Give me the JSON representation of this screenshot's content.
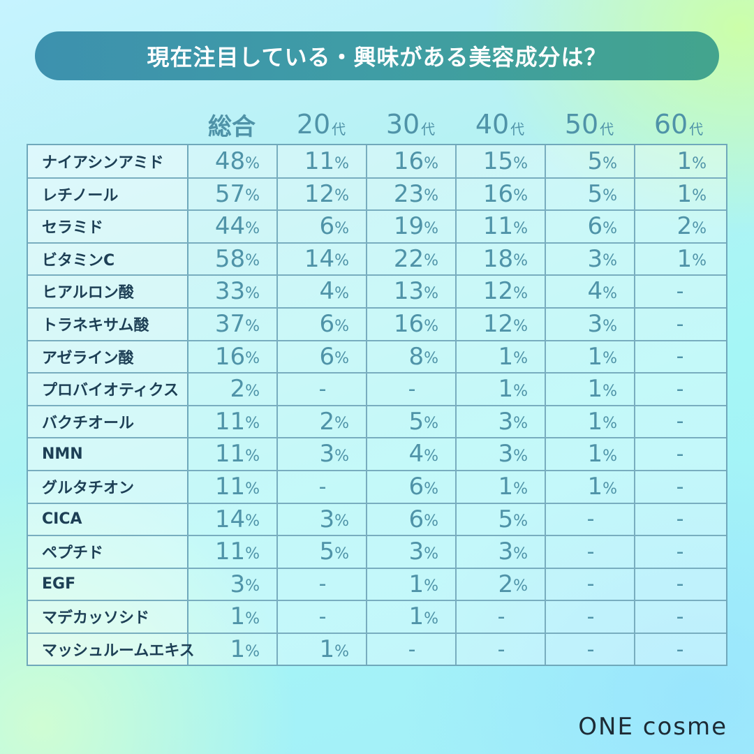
{
  "title": "現在注目している・興味がある美容成分は？",
  "brand": "ONE cosme",
  "chart_data": {
    "type": "table",
    "columns": [
      {
        "label": "総合",
        "num": "",
        "unit": ""
      },
      {
        "label": "20代",
        "num": "20",
        "unit": "代"
      },
      {
        "label": "30代",
        "num": "30",
        "unit": "代"
      },
      {
        "label": "40代",
        "num": "40",
        "unit": "代"
      },
      {
        "label": "50代",
        "num": "50",
        "unit": "代"
      },
      {
        "label": "60代",
        "num": "60",
        "unit": "代"
      }
    ],
    "unit_symbol": "%",
    "empty_symbol": "-",
    "rows": [
      {
        "label": "ナイアシンアミド",
        "values": [
          48,
          11,
          16,
          15,
          5,
          1
        ]
      },
      {
        "label": "レチノール",
        "values": [
          57,
          12,
          23,
          16,
          5,
          1
        ]
      },
      {
        "label": "セラミド",
        "values": [
          44,
          6,
          19,
          11,
          6,
          2
        ]
      },
      {
        "label": "ビタミンC",
        "values": [
          58,
          14,
          22,
          18,
          3,
          1
        ]
      },
      {
        "label": "ヒアルロン酸",
        "values": [
          33,
          4,
          13,
          12,
          4,
          null
        ]
      },
      {
        "label": "トラネキサム酸",
        "values": [
          37,
          6,
          16,
          12,
          3,
          null
        ]
      },
      {
        "label": "アゼライン酸",
        "values": [
          16,
          6,
          8,
          1,
          1,
          null
        ]
      },
      {
        "label": "プロバイオティクス",
        "values": [
          2,
          null,
          null,
          1,
          1,
          null
        ]
      },
      {
        "label": "バクチオール",
        "values": [
          11,
          2,
          5,
          3,
          1,
          null
        ]
      },
      {
        "label": "NMN",
        "values": [
          11,
          3,
          4,
          3,
          1,
          null
        ]
      },
      {
        "label": "グルタチオン",
        "values": [
          11,
          null,
          6,
          1,
          1,
          null
        ]
      },
      {
        "label": "CICA",
        "values": [
          14,
          3,
          6,
          5,
          null,
          null
        ]
      },
      {
        "label": "ペプチド",
        "values": [
          11,
          5,
          3,
          3,
          null,
          null
        ]
      },
      {
        "label": "EGF",
        "values": [
          3,
          null,
          1,
          2,
          null,
          null
        ]
      },
      {
        "label": "マデカッソシド",
        "values": [
          1,
          null,
          1,
          null,
          null,
          null
        ]
      },
      {
        "label": "マッシュルームエキス",
        "values": [
          1,
          1,
          null,
          null,
          null,
          null
        ]
      }
    ]
  }
}
